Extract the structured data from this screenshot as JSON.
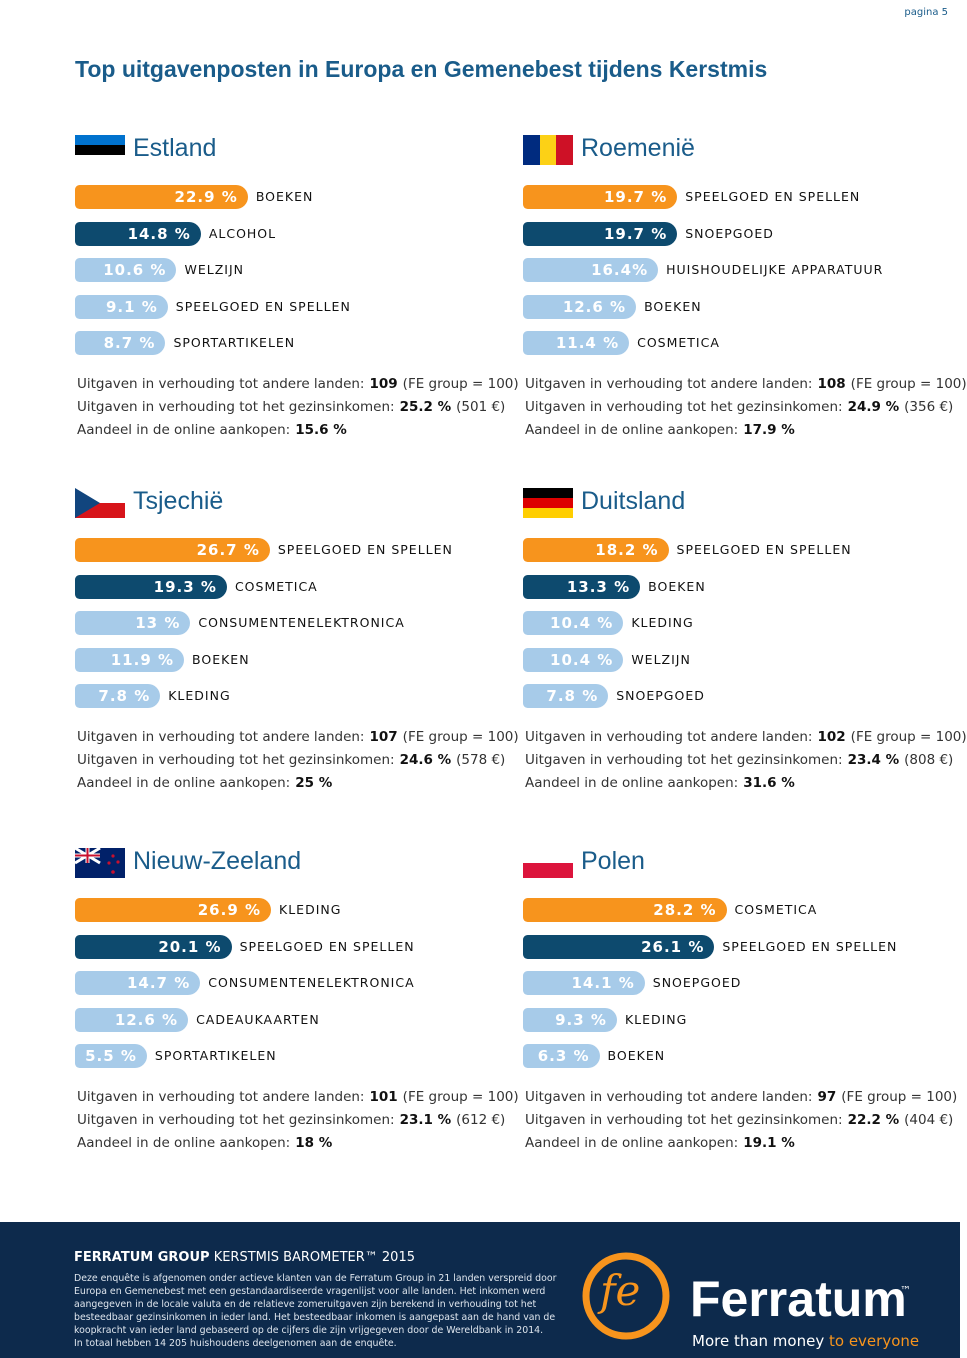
{
  "page_number": "pagina 5",
  "title": "Top uitgavenposten in Europa en Gemenebest tijdens Kerstmis",
  "sections": [
    {
      "country": "Estland",
      "items": [
        {
          "value": 22.9,
          "label": "22.9 %",
          "category": "BOEKEN"
        },
        {
          "value": 14.8,
          "label": "14.8 %",
          "category": "ALCOHOL"
        },
        {
          "value": 10.6,
          "label": "10.6 %",
          "category": "WELZIJN"
        },
        {
          "value": 9.1,
          "label": "9.1 %",
          "category": "SPEELGOED EN SPELLEN"
        },
        {
          "value": 8.7,
          "label": "8.7 %",
          "category": "SPORTARTIKELEN"
        }
      ],
      "stats": [
        {
          "text": "Uitgaven in verhouding tot andere landen:",
          "value": "109",
          "suffix": "(FE group = 100)"
        },
        {
          "text": "Uitgaven in verhouding tot het gezinsinkomen:",
          "value": "25.2 %",
          "suffix": "(501 €)"
        },
        {
          "text": "Aandeel in de online aankopen:",
          "value": "15.6 %"
        }
      ]
    },
    {
      "country": "Roemenië",
      "items": [
        {
          "value": 19.7,
          "label": "19.7 %",
          "category": "SPEELGOED EN SPELLEN"
        },
        {
          "value": 19.7,
          "label": "19.7 %",
          "category": "SNOEPGOED"
        },
        {
          "value": 16.4,
          "label": "16.4%",
          "category": "HUISHOUDELIJKE APPARATUUR"
        },
        {
          "value": 12.6,
          "label": "12.6 %",
          "category": "BOEKEN"
        },
        {
          "value": 11.4,
          "label": "11.4 %",
          "category": "COSMETICA"
        }
      ],
      "stats": [
        {
          "text": "Uitgaven in verhouding tot andere landen:",
          "value": "108",
          "suffix": "(FE group = 100)"
        },
        {
          "text": "Uitgaven in verhouding tot het gezinsinkomen:",
          "value": "24.9 %",
          "suffix": "(356 €)"
        },
        {
          "text": "Aandeel in de online aankopen:",
          "value": "17.9 %"
        }
      ]
    },
    {
      "country": "Tsjechië",
      "items": [
        {
          "value": 26.7,
          "label": "26.7 %",
          "category": "SPEELGOED EN SPELLEN"
        },
        {
          "value": 19.3,
          "label": "19.3 %",
          "category": "COSMETICA"
        },
        {
          "value": 13,
          "label": "13 %",
          "category": "CONSUMENTENELEKTRONICA"
        },
        {
          "value": 11.9,
          "label": "11.9 %",
          "category": "BOEKEN"
        },
        {
          "value": 7.8,
          "label": "7.8 %",
          "category": "KLEDING"
        }
      ],
      "stats": [
        {
          "text": "Uitgaven in verhouding tot andere landen:",
          "value": "107",
          "suffix": "(FE group = 100)"
        },
        {
          "text": "Uitgaven in verhouding tot het gezinsinkomen:",
          "value": "24.6 %",
          "suffix": "(578 €)"
        },
        {
          "text": "Aandeel in de online aankopen:",
          "value": "25 %"
        }
      ]
    },
    {
      "country": "Duitsland",
      "items": [
        {
          "value": 18.2,
          "label": "18.2 %",
          "category": "SPEELGOED EN SPELLEN"
        },
        {
          "value": 13.3,
          "label": "13.3 %",
          "category": "BOEKEN"
        },
        {
          "value": 10.4,
          "label": "10.4 %",
          "category": "KLEDING"
        },
        {
          "value": 10.4,
          "label": "10.4 %",
          "category": "WELZIJN"
        },
        {
          "value": 7.8,
          "label": "7.8 %",
          "category": "SNOEPGOED"
        }
      ],
      "stats": [
        {
          "text": "Uitgaven in verhouding tot andere landen:",
          "value": "102",
          "suffix": "(FE group = 100)"
        },
        {
          "text": "Uitgaven in verhouding tot het gezinsinkomen:",
          "value": "23.4 %",
          "suffix": "(808 €)"
        },
        {
          "text": "Aandeel in de online aankopen:",
          "value": "31.6 %"
        }
      ]
    },
    {
      "country": "Nieuw-Zeeland",
      "items": [
        {
          "value": 26.9,
          "label": "26.9 %",
          "category": "KLEDING"
        },
        {
          "value": 20.1,
          "label": "20.1 %",
          "category": "SPEELGOED EN SPELLEN"
        },
        {
          "value": 14.7,
          "label": "14.7 %",
          "category": "CONSUMENTENELEKTRONICA"
        },
        {
          "value": 12.6,
          "label": "12.6 %",
          "category": "CADEAUKAARTEN"
        },
        {
          "value": 5.5,
          "label": "5.5 %",
          "category": "SPORTARTIKELEN"
        }
      ],
      "stats": [
        {
          "text": "Uitgaven in verhouding tot andere landen:",
          "value": "101",
          "suffix": "(FE group = 100)"
        },
        {
          "text": "Uitgaven in verhouding tot het gezinsinkomen:",
          "value": "23.1 %",
          "suffix": "(612 €)"
        },
        {
          "text": "Aandeel in de online aankopen:",
          "value": "18 %"
        }
      ]
    },
    {
      "country": "Polen",
      "items": [
        {
          "value": 28.2,
          "label": "28.2 %",
          "category": "COSMETICA"
        },
        {
          "value": 26.1,
          "label": "26.1 %",
          "category": "SPEELGOED EN SPELLEN"
        },
        {
          "value": 14.1,
          "label": "14.1 %",
          "category": "SNOEPGOED"
        },
        {
          "value": 9.3,
          "label": "9.3 %",
          "category": "KLEDING"
        },
        {
          "value": 6.3,
          "label": "6.3 %",
          "category": "BOEKEN"
        }
      ],
      "stats": [
        {
          "text": "Uitgaven in verhouding tot andere landen:",
          "value": "97",
          "suffix": "(FE group = 100)"
        },
        {
          "text": "Uitgaven in verhouding tot het gezinsinkomen:",
          "value": "22.2 %",
          "suffix": "(404 €)"
        },
        {
          "text": "Aandeel in de online aankopen:",
          "value": "19.1 %"
        }
      ]
    }
  ],
  "footer": {
    "title_bold": "FERRATUM GROUP",
    "title_rest": "KERSTMIS BAROMETER™ 2015",
    "lines": [
      "Deze enquête is afgenomen onder actieve klanten van de Ferratum Group in 21 landen verspreid door",
      "Europa en Gemenebest met een gestandaardiseerde vragenlijst voor alle landen. Het inkomen werd",
      "aangegeven in de locale valuta en de relatieve zomeruitgaven zijn berekend in verhouding tot het",
      "besteedbaar gezinsinkomen in ieder land. Het besteedbaar inkomen is aangepast aan de hand van de",
      "koopkracht van ieder land gebaseerd op de cijfers die zijn vrijgegeven door de Wereldbank in 2014.",
      "In totaal hebben 14 205 huishoudens deelgenomen aan de enquête."
    ],
    "logo_mark": "fe",
    "logo": "Ferratum",
    "logo_tm": "™",
    "slogan": "More than money",
    "slogan_accent": "to everyone"
  }
}
